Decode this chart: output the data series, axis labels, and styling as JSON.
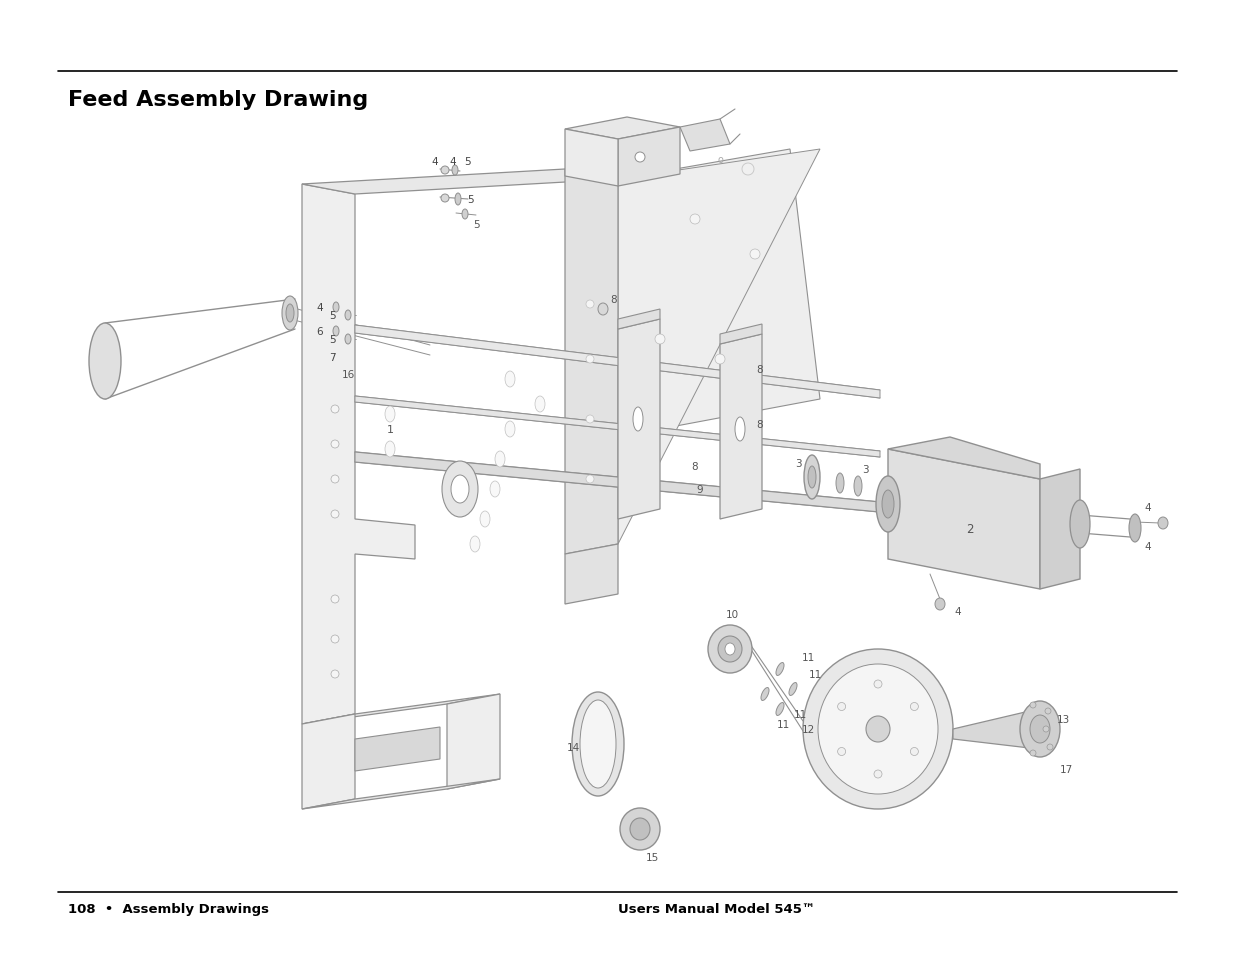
{
  "title": "Feed Assembly Drawing",
  "footer_left": "108  •  Assembly Drawings",
  "footer_right": "Users Manual Model 545™",
  "bg_color": "#ffffff",
  "lc": "#b0b0b0",
  "dlc": "#909090",
  "tc": "#000000",
  "title_fontsize": 16,
  "footer_fontsize": 9.5
}
